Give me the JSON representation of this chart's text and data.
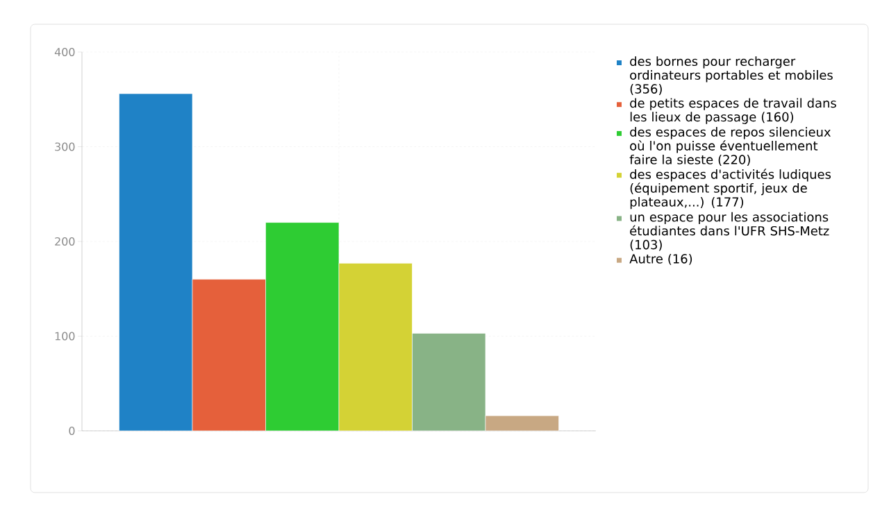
{
  "chart_data": {
    "type": "bar",
    "categories": [
      null
    ],
    "series": [
      {
        "name": "des bornes pour recharger ordinateurs portables et mobiles (356)",
        "color": "#1f82c6",
        "values": [
          356
        ]
      },
      {
        "name": "de petits espaces de travail dans les lieux de passage (160)",
        "color": "#e5603b",
        "values": [
          160
        ]
      },
      {
        "name": "des espaces de repos silencieux où l'on puisse éventuellement faire la sieste (220)",
        "color": "#2ecc33",
        "values": [
          220
        ]
      },
      {
        "name": "des espaces d'activités ludiques (équipement sportif, jeux de plateaux,...) (177)",
        "color": "#d4d235",
        "values": [
          177
        ]
      },
      {
        "name": "un espace pour les associations étudiantes dans l'UFR SHS-Metz (103)",
        "color": "#88b386",
        "values": [
          103
        ]
      },
      {
        "name": "Autre (16)",
        "color": "#c8a883",
        "values": [
          16
        ]
      }
    ],
    "ylim": [
      0,
      400
    ],
    "yticks": [
      0,
      100,
      200,
      300,
      400
    ],
    "grid": true,
    "legend": "right"
  }
}
